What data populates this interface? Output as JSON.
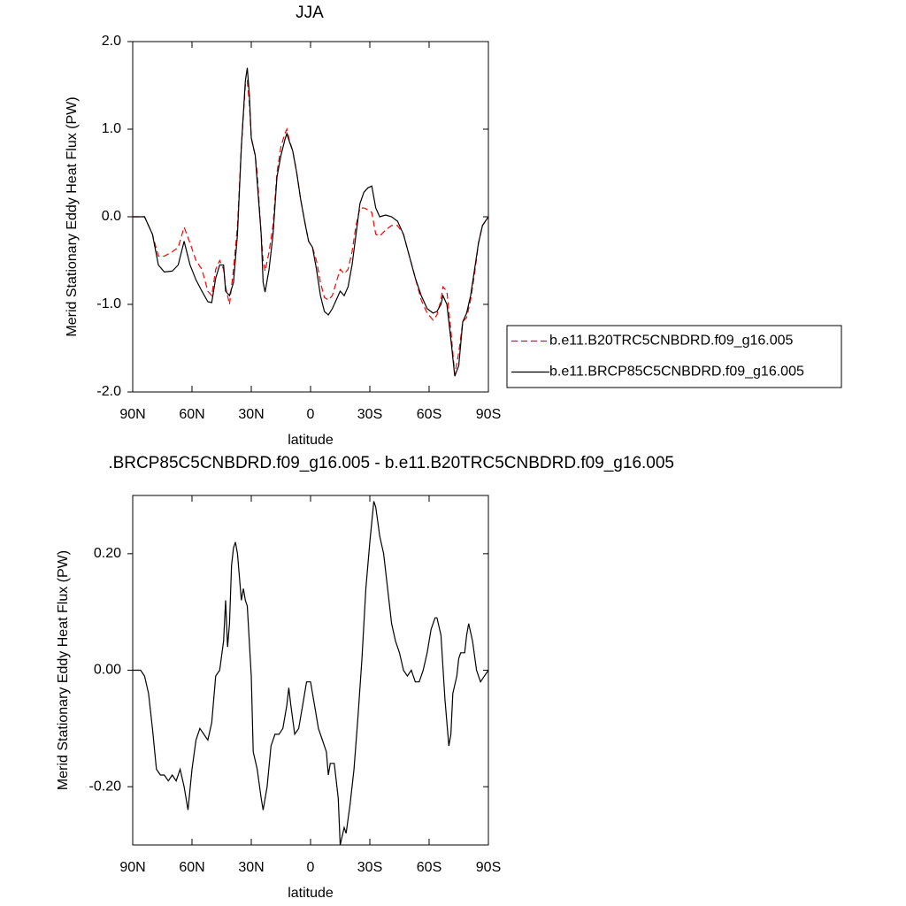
{
  "chart_data": [
    {
      "type": "line",
      "title": "JJA",
      "xlabel": "latitude",
      "ylabel": "Merid Stationary Eddy Heat Flux (PW)",
      "x": [
        90,
        84,
        80,
        77,
        74,
        70,
        67,
        64,
        61,
        58,
        55,
        52,
        50,
        48,
        46,
        44,
        43,
        41,
        39,
        37,
        35,
        33,
        32,
        31,
        30,
        28,
        27,
        25,
        24,
        23,
        21,
        19,
        17,
        15,
        13,
        12,
        11,
        9,
        7,
        5,
        3,
        1,
        -1,
        -3,
        -5,
        -7,
        -9,
        -11,
        -13,
        -15,
        -17,
        -19,
        -21,
        -23,
        -25,
        -27,
        -29,
        -31,
        -33,
        -35,
        -38,
        -41,
        -44,
        -47,
        -50,
        -53,
        -56,
        -59,
        -62,
        -64,
        -66,
        -67,
        -69,
        -71,
        -73,
        -75,
        -77,
        -79,
        -81,
        -83,
        -85,
        -87,
        -90
      ],
      "series": [
        {
          "name": "b.e11.B20TRC5CNBDRD.f09_g16.005",
          "color": "#ff0000",
          "dash": "dashed",
          "values": [
            0,
            0,
            -0.2,
            -0.45,
            -0.45,
            -0.4,
            -0.35,
            -0.12,
            -0.3,
            -0.5,
            -0.6,
            -0.85,
            -0.9,
            -0.6,
            -0.5,
            -0.6,
            -0.8,
            -1.0,
            -0.6,
            -0.1,
            0.8,
            1.5,
            1.55,
            1.3,
            0.9,
            0.7,
            0.5,
            -0.2,
            -0.5,
            -0.62,
            -0.4,
            -0.1,
            0.5,
            0.8,
            0.95,
            1.0,
            0.9,
            0.75,
            0.5,
            0.2,
            -0.05,
            -0.28,
            -0.35,
            -0.5,
            -0.75,
            -0.92,
            -0.95,
            -0.9,
            -0.75,
            -0.6,
            -0.65,
            -0.6,
            -0.4,
            -0.1,
            0.1,
            0.1,
            0.08,
            0.05,
            -0.2,
            -0.22,
            -0.15,
            -0.1,
            -0.1,
            -0.2,
            -0.45,
            -0.7,
            -0.95,
            -1.1,
            -1.18,
            -1.12,
            -0.95,
            -0.8,
            -0.85,
            -1.3,
            -1.8,
            -1.55,
            -1.2,
            -1.15,
            -0.95,
            -0.65,
            -0.3,
            -0.1,
            0
          ]
        },
        {
          "name": "b.e11.BRCP85C5CNBDRD.f09_g16.005",
          "color": "#000000",
          "dash": "solid",
          "values": [
            0,
            0,
            -0.2,
            -0.55,
            -0.63,
            -0.62,
            -0.55,
            -0.28,
            -0.55,
            -0.72,
            -0.85,
            -0.97,
            -0.98,
            -0.7,
            -0.55,
            -0.55,
            -0.85,
            -0.9,
            -0.75,
            -0.2,
            0.8,
            1.55,
            1.7,
            1.4,
            0.9,
            0.7,
            0.4,
            -0.2,
            -0.75,
            -0.86,
            -0.6,
            -0.2,
            0.45,
            0.7,
            0.88,
            0.95,
            0.88,
            0.75,
            0.5,
            0.2,
            -0.05,
            -0.28,
            -0.35,
            -0.6,
            -0.9,
            -1.08,
            -1.12,
            -1.05,
            -0.95,
            -0.85,
            -0.9,
            -0.8,
            -0.55,
            -0.2,
            0.15,
            0.28,
            0.33,
            0.35,
            0.1,
            0.0,
            0.02,
            0.0,
            -0.05,
            -0.2,
            -0.45,
            -0.7,
            -0.9,
            -1.05,
            -1.1,
            -1.08,
            -1.0,
            -0.9,
            -1.0,
            -1.4,
            -1.82,
            -1.7,
            -1.2,
            -1.1,
            -0.9,
            -0.6,
            -0.3,
            -0.1,
            0
          ]
        }
      ],
      "xlim": [
        90,
        -90
      ],
      "xticks": [
        {
          "value": 90,
          "label": "90N"
        },
        {
          "value": 60,
          "label": "60N"
        },
        {
          "value": 30,
          "label": "30N"
        },
        0,
        {
          "value": -30,
          "label": "30S"
        },
        {
          "value": -60,
          "label": "60S"
        },
        {
          "value": -90,
          "label": "90S"
        }
      ],
      "ylim": [
        -2,
        2
      ],
      "yticks": [
        {
          "value": 2,
          "label": "2.0"
        },
        {
          "value": 1,
          "label": "1.0"
        },
        {
          "value": 0,
          "label": "0.0"
        },
        {
          "value": -1,
          "label": "-1.0"
        },
        {
          "value": -2,
          "label": "-2.0"
        }
      ],
      "legend": "right"
    },
    {
      "type": "line",
      "title": ".BRCP85C5CNBDRD.f09_g16.005 - b.e11.B20TRC5CNBDRD.f09_g16.005",
      "xlabel": "latitude",
      "ylabel": "Merid Stationary Eddy Heat Flux (PW)",
      "x": [
        90,
        86,
        84,
        82,
        80,
        78,
        76,
        74,
        72,
        70,
        68,
        66,
        64,
        62,
        60,
        58,
        56,
        54,
        52,
        50,
        48,
        46,
        44,
        43,
        42,
        41,
        40,
        39,
        38,
        37,
        36,
        35,
        34,
        33,
        32,
        30,
        29,
        27,
        25,
        24,
        22,
        20,
        18,
        16,
        14,
        12,
        11,
        10,
        8,
        6,
        4,
        2,
        0,
        -2,
        -4,
        -6,
        -8,
        -9,
        -10,
        -12,
        -14,
        -15,
        -17,
        -18,
        -20,
        -22,
        -24,
        -26,
        -28,
        -30,
        -32,
        -33,
        -35,
        -37,
        -39,
        -41,
        -43,
        -45,
        -47,
        -49,
        -51,
        -53,
        -55,
        -57,
        -59,
        -61,
        -63,
        -64,
        -66,
        -68,
        -70,
        -71,
        -72,
        -74,
        -75,
        -76,
        -78,
        -79,
        -80,
        -82,
        -84,
        -86,
        -88,
        -90
      ],
      "values": [
        0,
        0,
        -0.01,
        -0.04,
        -0.1,
        -0.17,
        -0.18,
        -0.18,
        -0.19,
        -0.18,
        -0.19,
        -0.17,
        -0.2,
        -0.24,
        -0.17,
        -0.12,
        -0.1,
        -0.11,
        -0.12,
        -0.09,
        -0.01,
        0,
        0.05,
        0.12,
        0.04,
        0.08,
        0.18,
        0.21,
        0.22,
        0.2,
        0.16,
        0.12,
        0.14,
        0.12,
        0.11,
        -0.01,
        -0.14,
        -0.17,
        -0.22,
        -0.24,
        -0.2,
        -0.13,
        -0.11,
        -0.11,
        -0.1,
        -0.06,
        -0.03,
        -0.06,
        -0.11,
        -0.1,
        -0.06,
        -0.02,
        -0.02,
        -0.06,
        -0.1,
        -0.12,
        -0.14,
        -0.18,
        -0.16,
        -0.16,
        -0.22,
        -0.3,
        -0.27,
        -0.28,
        -0.23,
        -0.17,
        -0.08,
        0.02,
        0.14,
        0.22,
        0.29,
        0.28,
        0.23,
        0.2,
        0.14,
        0.08,
        0.05,
        0.03,
        0,
        -0.01,
        0,
        -0.02,
        -0.02,
        0,
        0.03,
        0.07,
        0.09,
        0.09,
        0.06,
        -0.05,
        -0.13,
        -0.11,
        -0.04,
        -0.01,
        0.02,
        0.03,
        0.03,
        0.06,
        0.08,
        0.05,
        0,
        -0.02,
        -0.01,
        0
      ],
      "color": "#000000",
      "xlim": [
        90,
        -90
      ],
      "xticks": [
        {
          "value": 90,
          "label": "90N"
        },
        {
          "value": 60,
          "label": "60N"
        },
        {
          "value": 30,
          "label": "30N"
        },
        0,
        {
          "value": -30,
          "label": "30S"
        },
        {
          "value": -60,
          "label": "60S"
        },
        {
          "value": -90,
          "label": "90S"
        }
      ],
      "ylim": [
        -0.3,
        0.3
      ],
      "yticks": [
        {
          "value": 0.2,
          "label": "0.20"
        },
        {
          "value": 0,
          "label": "0.00"
        },
        {
          "value": -0.2,
          "label": "-0.20"
        }
      ]
    }
  ]
}
